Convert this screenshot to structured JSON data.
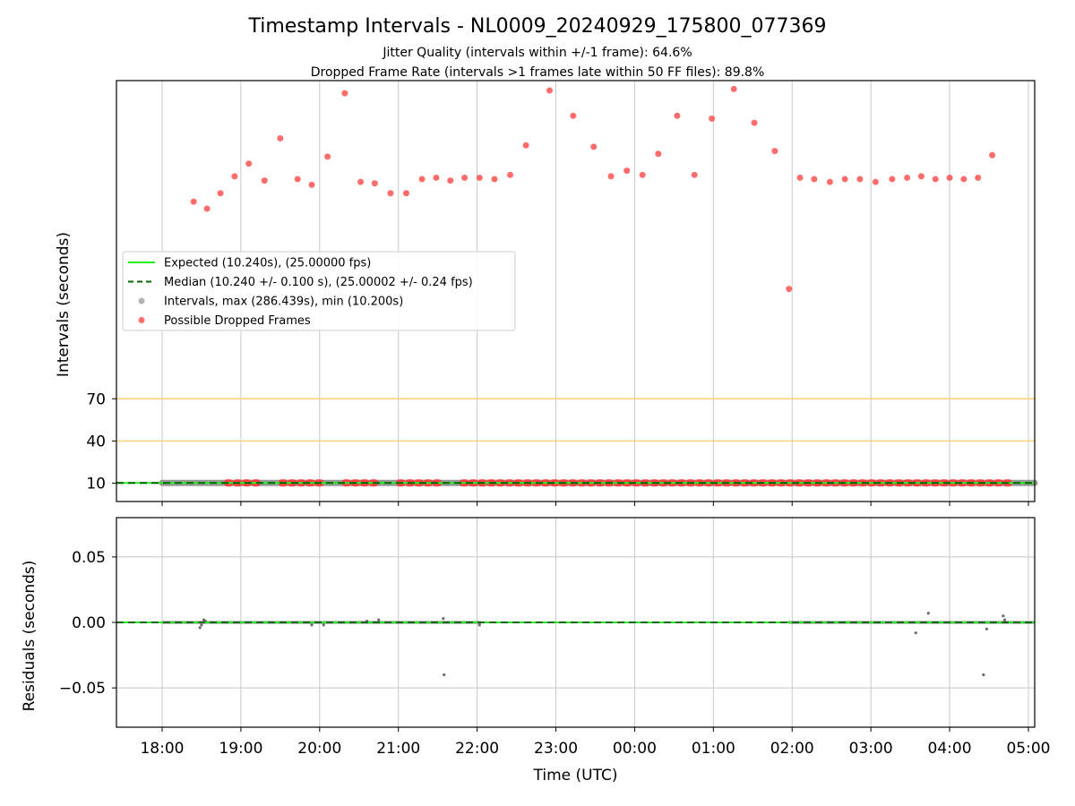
{
  "figure": {
    "title": "Timestamp Intervals - NL0009_20240929_175800_077369",
    "subtitle_1": "Jitter Quality (intervals within +/-1 frame): 64.6%",
    "subtitle_2": "Dropped Frame Rate (intervals >1 frames late within 50 FF files): 89.8%"
  },
  "colors": {
    "expected": "#22ee22",
    "median": "#006400",
    "intervals": "#808080",
    "dropped": "#ff3b3b",
    "threshold": "#ffd070",
    "grid": "#c8c8c8"
  },
  "chart_data": [
    {
      "type": "scatter",
      "title": "",
      "xlabel": "",
      "ylabel": "Intervals (seconds)",
      "x_ticks": [
        "18:00",
        "19:00",
        "20:00",
        "21:00",
        "22:00",
        "23:00",
        "00:00",
        "01:00",
        "02:00",
        "03:00",
        "04:00",
        "05:00"
      ],
      "y_ticks": [
        "10",
        "40",
        "70"
      ],
      "x_hours_since_1800_range": [
        -0.58,
        11.08
      ],
      "ylim": [
        -3,
        296
      ],
      "yscale": "linear",
      "grid": "vertical",
      "legend_position": "center-left",
      "thresholds": [
        40,
        70
      ],
      "legend": [
        "Expected (10.240s), (25.00000 fps)",
        "Median (10.240 +/- 0.100 s), (25.00002 +/- 0.24 fps)",
        "Intervals, max (286.439s), min (10.200s)",
        "Possible Dropped Frames"
      ],
      "series": [
        {
          "name": "Expected (10.240s), (25.00000 fps)",
          "kind": "hline",
          "y": 10.24
        },
        {
          "name": "Median (10.240 +/- 0.100 s), (25.00002 +/- 0.24 fps)",
          "kind": "hline",
          "y": 10.24
        },
        {
          "name": "Intervals, max (286.439s), min (10.200s)",
          "kind": "dense-band",
          "x_from": 0.0,
          "x_to": 11.08,
          "y": 10.24
        },
        {
          "name": "Possible Dropped Frames",
          "kind": "scatter",
          "points": [
            [
              0.4,
              210
            ],
            [
              0.57,
              205
            ],
            [
              0.74,
              216
            ],
            [
              0.92,
              228
            ],
            [
              1.1,
              237
            ],
            [
              1.3,
              225
            ],
            [
              1.5,
              255
            ],
            [
              1.72,
              226
            ],
            [
              1.9,
              222
            ],
            [
              2.1,
              242
            ],
            [
              2.32,
              287
            ],
            [
              2.52,
              224
            ],
            [
              2.7,
              223
            ],
            [
              2.9,
              216
            ],
            [
              3.1,
              216
            ],
            [
              3.3,
              226
            ],
            [
              3.48,
              227
            ],
            [
              3.66,
              225
            ],
            [
              3.84,
              227
            ],
            [
              4.03,
              227
            ],
            [
              4.22,
              226
            ],
            [
              4.42,
              229
            ],
            [
              4.62,
              250
            ],
            [
              4.92,
              289
            ],
            [
              5.22,
              271
            ],
            [
              5.48,
              249
            ],
            [
              5.7,
              228
            ],
            [
              5.9,
              232
            ],
            [
              6.1,
              229
            ],
            [
              6.3,
              244
            ],
            [
              6.54,
              271
            ],
            [
              6.76,
              229
            ],
            [
              6.98,
              269
            ],
            [
              7.26,
              290
            ],
            [
              7.52,
              266
            ],
            [
              7.78,
              246
            ],
            [
              7.96,
              148
            ],
            [
              8.1,
              227
            ],
            [
              8.28,
              226
            ],
            [
              8.48,
              224
            ],
            [
              8.67,
              226
            ],
            [
              8.86,
              226
            ],
            [
              9.06,
              224
            ],
            [
              9.27,
              226
            ],
            [
              9.46,
              227
            ],
            [
              9.64,
              228
            ],
            [
              9.82,
              226
            ],
            [
              10.0,
              227
            ],
            [
              10.18,
              226
            ],
            [
              10.36,
              227
            ],
            [
              10.54,
              243
            ]
          ]
        }
      ]
    },
    {
      "type": "scatter",
      "title": "",
      "xlabel": "Time (UTC)",
      "ylabel": "Residuals (seconds)",
      "x_ticks": [
        "18:00",
        "19:00",
        "20:00",
        "21:00",
        "22:00",
        "23:00",
        "00:00",
        "01:00",
        "02:00",
        "03:00",
        "04:00",
        "05:00"
      ],
      "y_ticks": [
        "0.05",
        "0.00",
        "−0.05"
      ],
      "x_hours_since_1800_range": [
        -0.58,
        11.08
      ],
      "ylim": [
        -0.08,
        0.08
      ],
      "grid": "both",
      "series": [
        {
          "name": "Expected (10.240s), (25.00000 fps)",
          "kind": "hline",
          "y": 0
        },
        {
          "name": "Median (10.240 +/- 0.100 s), (25.00002 +/- 0.24 fps)",
          "kind": "hline",
          "y": 0
        },
        {
          "name": "Intervals, max (286.439s), min (10.200s)",
          "kind": "scatter",
          "points": [
            [
              0.48,
              -0.004
            ],
            [
              0.5,
              -0.002
            ],
            [
              0.53,
              0.002
            ],
            [
              0.55,
              0.001
            ],
            [
              1.9,
              -0.002
            ],
            [
              2.05,
              -0.002
            ],
            [
              2.6,
              0.001
            ],
            [
              2.75,
              0.002
            ],
            [
              3.57,
              0.003
            ],
            [
              3.58,
              -0.04
            ],
            [
              4.03,
              -0.002
            ],
            [
              9.57,
              -0.008
            ],
            [
              9.73,
              0.007
            ],
            [
              10.43,
              -0.04
            ],
            [
              10.47,
              -0.005
            ],
            [
              10.68,
              0.005
            ],
            [
              10.7,
              0.002
            ]
          ]
        }
      ]
    }
  ]
}
